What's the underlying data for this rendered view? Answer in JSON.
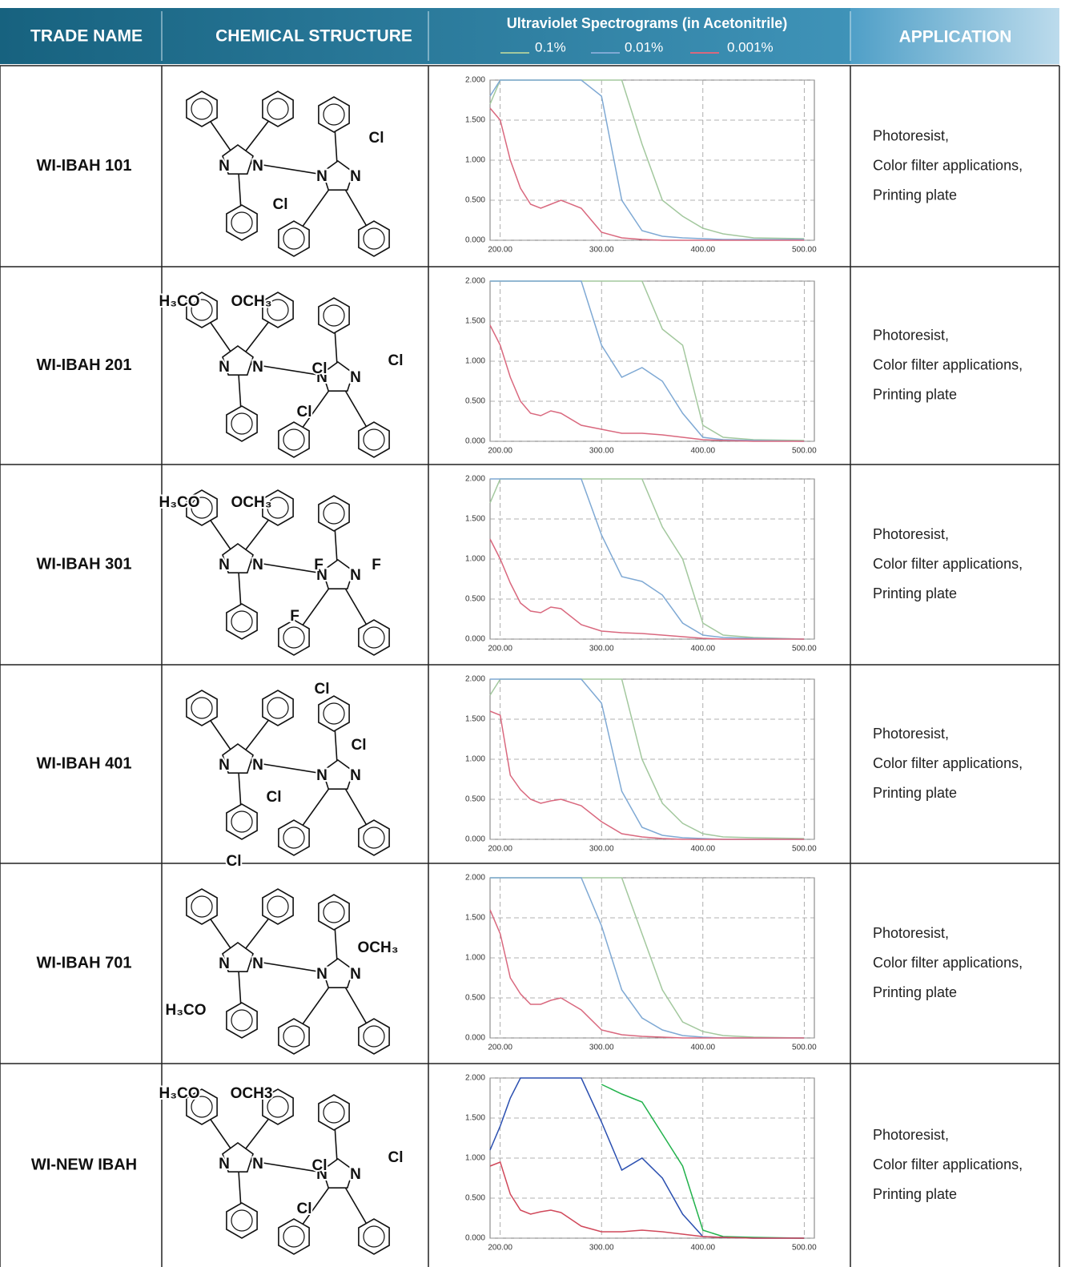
{
  "header": {
    "trade_name": "TRADE NAME",
    "chemical_structure": "CHEMICAL STRUCTURE",
    "spectrograms": "Ultraviolet Spectrograms (in Acetonitrile)",
    "application": "APPLICATION"
  },
  "rows": [
    {
      "trade_name": "WI-IBAH 101",
      "structure_labels": [
        "N",
        "N",
        "N",
        "N",
        "Cl",
        "Cl"
      ],
      "application": [
        "Photoresist,",
        "Color filter applications,",
        "Printing plate"
      ]
    },
    {
      "trade_name": "WI-IBAH 201",
      "structure_labels": [
        "H₃CO",
        "OCH₃",
        "N",
        "N",
        "N",
        "N",
        "Cl",
        "Cl",
        "Cl"
      ],
      "application": [
        "Photoresist,",
        "Color filter applications,",
        "Printing plate"
      ]
    },
    {
      "trade_name": "WI-IBAH 301",
      "structure_labels": [
        "H₃CO",
        "OCH₃",
        "N",
        "N",
        "N",
        "N",
        "F",
        "F",
        "F"
      ],
      "application": [
        "Photoresist,",
        "Color filter applications,",
        "Printing plate"
      ]
    },
    {
      "trade_name": "WI-IBAH 401",
      "structure_labels": [
        "Cl",
        "Cl",
        "N",
        "N",
        "N",
        "N",
        "Cl",
        "Cl"
      ],
      "application": [
        "Photoresist,",
        "Color filter applications,",
        "Printing plate"
      ]
    },
    {
      "trade_name": "WI-IBAH 701",
      "structure_labels": [
        "OCH₃",
        "N",
        "N",
        "N",
        "N",
        "H₃CO"
      ],
      "application": [
        "Photoresist,",
        "Color filter applications,",
        "Printing plate"
      ]
    },
    {
      "trade_name": "WI-NEW IBAH",
      "structure_labels": [
        "H₃CO",
        "OCH3",
        "N",
        "N",
        "N",
        "N",
        "Cl",
        "Cl",
        "Cl"
      ],
      "application": [
        "Photoresist,",
        "Color filter applications,",
        "Printing plate"
      ]
    }
  ],
  "chart_data": [
    {
      "type": "line",
      "x": [
        190,
        200,
        210,
        220,
        230,
        240,
        250,
        260,
        280,
        300,
        320,
        340,
        360,
        380,
        400,
        420,
        450,
        500
      ],
      "xlim": [
        190,
        510
      ],
      "ylim": [
        0,
        2
      ],
      "xticks": [
        {
          "value": 200,
          "label": "200.00"
        },
        {
          "value": 300,
          "label": "300.00"
        },
        {
          "value": 400,
          "label": "400.00"
        },
        {
          "value": 500,
          "label": "500.00"
        }
      ],
      "yticks": [
        {
          "value": 0,
          "label": "0.000"
        },
        {
          "value": 0.5,
          "label": "0.500"
        },
        {
          "value": 1,
          "label": "1.000"
        },
        {
          "value": 1.5,
          "label": "1.500"
        },
        {
          "value": 2,
          "label": "2.000"
        }
      ],
      "grid": true,
      "series": [
        {
          "name": "0.1%",
          "color": "#a3c89e",
          "values": [
            1.7,
            2,
            2,
            2,
            2,
            2,
            2,
            2,
            2,
            2,
            2,
            1.2,
            0.5,
            0.3,
            0.15,
            0.08,
            0.03,
            0.02
          ]
        },
        {
          "name": "0.01%",
          "color": "#7fa9d4",
          "values": [
            1.8,
            2,
            2,
            2,
            2,
            2,
            2,
            2,
            2,
            1.8,
            0.5,
            0.12,
            0.05,
            0.03,
            0.02,
            0.01,
            0.01,
            0.01
          ]
        },
        {
          "name": "0.001%",
          "color": "#d9687e",
          "values": [
            1.65,
            1.5,
            1.0,
            0.65,
            0.45,
            0.4,
            0.45,
            0.5,
            0.4,
            0.1,
            0.03,
            0.01,
            0,
            0,
            0,
            0,
            0,
            0
          ]
        }
      ]
    },
    {
      "type": "line",
      "x": [
        190,
        200,
        210,
        220,
        230,
        240,
        250,
        260,
        280,
        300,
        320,
        340,
        360,
        380,
        400,
        420,
        450,
        500
      ],
      "xlim": [
        190,
        510
      ],
      "ylim": [
        0,
        2
      ],
      "xticks": [
        {
          "value": 200,
          "label": "200.00"
        },
        {
          "value": 300,
          "label": "300.00"
        },
        {
          "value": 400,
          "label": "400.00"
        },
        {
          "value": 500,
          "label": "500.00"
        }
      ],
      "yticks": [
        {
          "value": 0,
          "label": "0.000"
        },
        {
          "value": 0.5,
          "label": "0.500"
        },
        {
          "value": 1,
          "label": "1.000"
        },
        {
          "value": 1.5,
          "label": "1.500"
        },
        {
          "value": 2,
          "label": "2.000"
        }
      ],
      "grid": true,
      "series": [
        {
          "color": "#a3c89e",
          "values": [
            2,
            2,
            2,
            2,
            2,
            2,
            2,
            2,
            2,
            2,
            2,
            2,
            1.4,
            1.2,
            0.2,
            0.05,
            0.02,
            0.01
          ]
        },
        {
          "color": "#7fa9d4",
          "values": [
            2,
            2,
            2,
            2,
            2,
            2,
            2,
            2,
            2,
            1.2,
            0.8,
            0.92,
            0.75,
            0.35,
            0.05,
            0.02,
            0.01,
            0
          ]
        },
        {
          "color": "#d9687e",
          "values": [
            1.45,
            1.2,
            0.8,
            0.5,
            0.35,
            0.32,
            0.38,
            0.35,
            0.2,
            0.15,
            0.1,
            0.1,
            0.08,
            0.05,
            0.02,
            0.01,
            0,
            0
          ]
        }
      ]
    },
    {
      "type": "line",
      "x": [
        190,
        200,
        210,
        220,
        230,
        240,
        250,
        260,
        280,
        300,
        320,
        340,
        360,
        380,
        400,
        420,
        450,
        500
      ],
      "xlim": [
        190,
        510
      ],
      "ylim": [
        0,
        2
      ],
      "xticks": [
        {
          "value": 200,
          "label": "200.00"
        },
        {
          "value": 300,
          "label": "300.00"
        },
        {
          "value": 400,
          "label": "400.00"
        },
        {
          "value": 500,
          "label": "500.00"
        }
      ],
      "yticks": [
        {
          "value": 0,
          "label": "0.000"
        },
        {
          "value": 0.5,
          "label": "0.500"
        },
        {
          "value": 1,
          "label": "1.000"
        },
        {
          "value": 1.5,
          "label": "1.500"
        },
        {
          "value": 2,
          "label": "2.000"
        }
      ],
      "grid": true,
      "series": [
        {
          "color": "#a3c89e",
          "values": [
            1.7,
            2,
            2,
            2,
            2,
            2,
            2,
            2,
            2,
            2,
            2,
            2,
            1.4,
            1.0,
            0.2,
            0.05,
            0.02,
            0
          ]
        },
        {
          "color": "#7fa9d4",
          "values": [
            2,
            2,
            2,
            2,
            2,
            2,
            2,
            2,
            2,
            1.3,
            0.78,
            0.72,
            0.55,
            0.2,
            0.05,
            0.02,
            0.01,
            0
          ]
        },
        {
          "color": "#d9687e",
          "values": [
            1.25,
            1.0,
            0.7,
            0.45,
            0.35,
            0.33,
            0.4,
            0.38,
            0.18,
            0.1,
            0.08,
            0.07,
            0.05,
            0.03,
            0.01,
            0,
            0,
            0
          ]
        }
      ]
    },
    {
      "type": "line",
      "x": [
        190,
        200,
        210,
        220,
        230,
        240,
        250,
        260,
        280,
        300,
        320,
        340,
        360,
        380,
        400,
        420,
        450,
        500
      ],
      "xlim": [
        190,
        510
      ],
      "ylim": [
        0,
        2
      ],
      "xticks": [
        {
          "value": 200,
          "label": "200.00"
        },
        {
          "value": 300,
          "label": "300.00"
        },
        {
          "value": 400,
          "label": "400.00"
        },
        {
          "value": 500,
          "label": "500.00"
        }
      ],
      "yticks": [
        {
          "value": 0,
          "label": "0.000"
        },
        {
          "value": 0.5,
          "label": "0.500"
        },
        {
          "value": 1,
          "label": "1.000"
        },
        {
          "value": 1.5,
          "label": "1.500"
        },
        {
          "value": 2,
          "label": "2.000"
        }
      ],
      "grid": true,
      "series": [
        {
          "color": "#a3c89e",
          "values": [
            1.8,
            2,
            2,
            2,
            2,
            2,
            2,
            2,
            2,
            2,
            2,
            1.0,
            0.45,
            0.2,
            0.07,
            0.03,
            0.02,
            0.01
          ]
        },
        {
          "color": "#7fa9d4",
          "values": [
            2,
            2,
            2,
            2,
            2,
            2,
            2,
            2,
            2,
            1.7,
            0.6,
            0.15,
            0.05,
            0.02,
            0.01,
            0,
            0,
            0
          ]
        },
        {
          "color": "#d9687e",
          "values": [
            1.6,
            1.55,
            0.8,
            0.62,
            0.5,
            0.45,
            0.48,
            0.5,
            0.42,
            0.22,
            0.07,
            0.03,
            0.01,
            0,
            0,
            0,
            0,
            0
          ]
        }
      ]
    },
    {
      "type": "line",
      "x": [
        190,
        200,
        210,
        220,
        230,
        240,
        250,
        260,
        280,
        300,
        320,
        340,
        360,
        380,
        400,
        420,
        450,
        500
      ],
      "xlim": [
        190,
        510
      ],
      "ylim": [
        0,
        2
      ],
      "xticks": [
        {
          "value": 200,
          "label": "200.00"
        },
        {
          "value": 300,
          "label": "300.00"
        },
        {
          "value": 400,
          "label": "400.00"
        },
        {
          "value": 500,
          "label": "500.00"
        }
      ],
      "yticks": [
        {
          "value": 0,
          "label": "0.000"
        },
        {
          "value": 0.5,
          "label": "0.500"
        },
        {
          "value": 1,
          "label": "1.000"
        },
        {
          "value": 1.5,
          "label": "1.500"
        },
        {
          "value": 2,
          "label": "2.000"
        }
      ],
      "grid": true,
      "series": [
        {
          "color": "#a3c89e",
          "values": [
            2,
            2,
            2,
            2,
            2,
            2,
            2,
            2,
            2,
            2,
            2,
            1.3,
            0.6,
            0.2,
            0.08,
            0.03,
            0.01,
            0
          ]
        },
        {
          "color": "#7fa9d4",
          "values": [
            2,
            2,
            2,
            2,
            2,
            2,
            2,
            2,
            2,
            1.4,
            0.6,
            0.25,
            0.1,
            0.03,
            0.01,
            0,
            0,
            0
          ]
        },
        {
          "color": "#d9687e",
          "values": [
            1.6,
            1.3,
            0.75,
            0.55,
            0.42,
            0.42,
            0.47,
            0.5,
            0.35,
            0.1,
            0.04,
            0.02,
            0.01,
            0,
            0,
            0,
            0,
            0
          ]
        }
      ]
    },
    {
      "type": "line",
      "x": [
        190,
        200,
        210,
        220,
        230,
        240,
        250,
        260,
        280,
        300,
        320,
        340,
        360,
        380,
        400,
        420,
        450,
        500
      ],
      "xlim": [
        190,
        510
      ],
      "ylim": [
        0,
        2
      ],
      "xticks": [
        {
          "value": 200,
          "label": "200.00"
        },
        {
          "value": 300,
          "label": "300.00"
        },
        {
          "value": 400,
          "label": "400.00"
        },
        {
          "value": 500,
          "label": "500.00"
        }
      ],
      "yticks": [
        {
          "value": 0,
          "label": "0.000"
        },
        {
          "value": 0.5,
          "label": "0.500"
        },
        {
          "value": 1,
          "label": "1.000"
        },
        {
          "value": 1.5,
          "label": "1.500"
        },
        {
          "value": 2,
          "label": "2.000"
        }
      ],
      "grid": true,
      "series": [
        {
          "color": "#22b24c",
          "values": [
            null,
            null,
            null,
            null,
            null,
            null,
            null,
            null,
            null,
            1.92,
            1.8,
            1.7,
            1.3,
            0.9,
            0.1,
            0.02,
            0.01,
            0
          ]
        },
        {
          "color": "#2a4fb0",
          "values": [
            1.1,
            1.4,
            1.75,
            2,
            2,
            2,
            2,
            2,
            2,
            1.45,
            0.85,
            1.0,
            0.75,
            0.3,
            0.02,
            0.01,
            0,
            0
          ]
        },
        {
          "color": "#d0485a",
          "values": [
            0.9,
            0.95,
            0.55,
            0.35,
            0.3,
            0.33,
            0.35,
            0.32,
            0.15,
            0.08,
            0.08,
            0.1,
            0.08,
            0.05,
            0.02,
            0.01,
            0,
            0
          ]
        }
      ]
    }
  ]
}
